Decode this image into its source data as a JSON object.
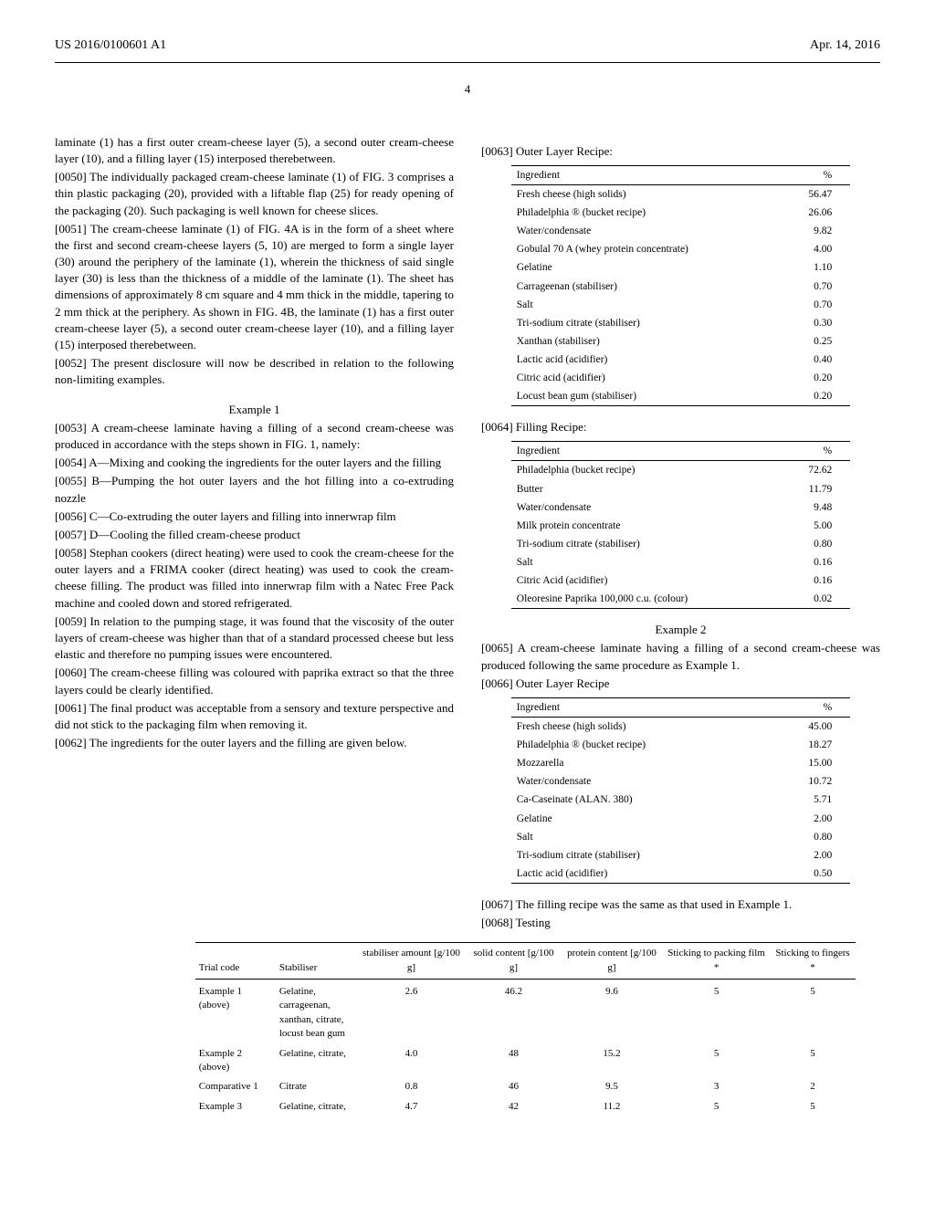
{
  "header": {
    "left": "US 2016/0100601 A1",
    "right": "Apr. 14, 2016",
    "page": "4"
  },
  "left_col": {
    "p49_cont": "laminate (1) has a first outer cream-cheese layer (5), a second outer cream-cheese layer (10), and a filling layer (15) interposed therebetween.",
    "p50": "[0050]    The individually packaged cream-cheese laminate (1) of FIG. 3 comprises a thin plastic packaging (20), provided with a liftable flap (25) for ready opening of the packaging (20). Such packaging is well known for cheese slices.",
    "p51": "[0051]    The cream-cheese laminate (1) of FIG. 4A is in the form of a sheet where the first and second cream-cheese layers (5, 10) are merged to form a single layer (30) around the periphery of the laminate (1), wherein the thickness of said single layer (30) is less than the thickness of a middle of the laminate (1). The sheet has dimensions of approximately 8 cm square and 4 mm thick in the middle, tapering to 2 mm thick at the periphery. As shown in FIG. 4B, the laminate (1) has a first outer cream-cheese layer (5), a second outer cream-cheese layer (10), and a filling layer (15) interposed therebetween.",
    "p52": "[0052]    The present disclosure will now be described in relation to the following non-limiting examples.",
    "example1": "Example 1",
    "p53": "[0053]    A cream-cheese laminate having a filling of a second cream-cheese was produced in accordance with the steps shown in FIG. 1, namely:",
    "p54": "[0054]    A—Mixing and cooking the ingredients for the outer layers and the filling",
    "p55": "[0055]    B—Pumping the hot outer layers and the hot filling into a co-extruding nozzle",
    "p56": "[0056]    C—Co-extruding the outer layers and filling into innerwrap film",
    "p57": "[0057]    D—Cooling the filled cream-cheese product",
    "p58": "[0058]    Stephan cookers (direct heating) were used to cook the cream-cheese for the outer layers and a FRIMA cooker (direct heating) was used to cook the cream-cheese filling. The product was filled into innerwrap film with a Natec Free Pack machine and cooled down and stored refrigerated.",
    "p59": "[0059]    In relation to the pumping stage, it was found that the viscosity of the outer layers of cream-cheese was higher than that of a standard processed cheese but less elastic and therefore no pumping issues were encountered.",
    "p60": "[0060]    The cream-cheese filling was coloured with paprika extract so that the three layers could be clearly identified.",
    "p61": "[0061]    The final product was acceptable from a sensory and texture perspective and did not stick to the packaging film when removing it.",
    "p62": "[0062]    The ingredients for the outer layers and the filling are given below."
  },
  "right_col": {
    "p63": "[0063]    Outer Layer Recipe:",
    "table1": {
      "header": [
        "Ingredient",
        "%"
      ],
      "rows": [
        [
          "Fresh cheese (high solids)",
          "56.47"
        ],
        [
          "Philadelphia ® (bucket recipe)",
          "26.06"
        ],
        [
          "Water/condensate",
          "9.82"
        ],
        [
          "Gobulal 70 A (whey protein concentrate)",
          "4.00"
        ],
        [
          "Gelatine",
          "1.10"
        ],
        [
          "Carrageenan (stabiliser)",
          "0.70"
        ],
        [
          "Salt",
          "0.70"
        ],
        [
          "Tri-sodium citrate (stabiliser)",
          "0.30"
        ],
        [
          "Xanthan (stabiliser)",
          "0.25"
        ],
        [
          "Lactic acid (acidifier)",
          "0.40"
        ],
        [
          "Citric acid (acidifier)",
          "0.20"
        ],
        [
          "Locust bean gum (stabiliser)",
          "0.20"
        ]
      ]
    },
    "p64": "[0064]    Filling Recipe:",
    "table2": {
      "header": [
        "Ingredient",
        "%"
      ],
      "rows": [
        [
          "Philadelphia (bucket recipe)",
          "72.62"
        ],
        [
          "Butter",
          "11.79"
        ],
        [
          "Water/condensate",
          "9.48"
        ],
        [
          "Milk protein concentrate",
          "5.00"
        ],
        [
          "Tri-sodium citrate (stabiliser)",
          "0.80"
        ],
        [
          "Salt",
          "0.16"
        ],
        [
          "Citric Acid (acidifier)",
          "0.16"
        ],
        [
          "Oleoresine Paprika 100,000 c.u. (colour)",
          "0.02"
        ]
      ]
    },
    "example2": "Example 2",
    "p65": "[0065]    A cream-cheese laminate having a filling of a second cream-cheese was produced following the same procedure as Example 1.",
    "p66": "[0066]    Outer Layer Recipe",
    "table3": {
      "header": [
        "Ingredient",
        "%"
      ],
      "rows": [
        [
          "Fresh cheese (high solids)",
          "45.00"
        ],
        [
          "Philadelphia ® (bucket recipe)",
          "18.27"
        ],
        [
          "Mozzarella",
          "15.00"
        ],
        [
          "Water/condensate",
          "10.72"
        ],
        [
          "Ca-Caseinate (ALAN. 380)",
          "5.71"
        ],
        [
          "Gelatine",
          "2.00"
        ],
        [
          "Salt",
          "0.80"
        ],
        [
          "Tri-sodium citrate (stabiliser)",
          "2.00"
        ],
        [
          "Lactic acid (acidifier)",
          "0.50"
        ]
      ]
    },
    "p67": "[0067]    The filling recipe was the same as that used in Example 1.",
    "p68": "[0068]    Testing"
  },
  "testing_table": {
    "header": [
      "Trial code",
      "Stabiliser",
      "stabiliser amount [g/100 g]",
      "solid content [g/100 g]",
      "protein content [g/100 g]",
      "Sticking to packing film *",
      "Sticking to fingers *"
    ],
    "rows": [
      [
        "Example 1 (above)",
        "Gelatine, carrageenan, xanthan, citrate, locust bean gum",
        "2.6",
        "46.2",
        "9.6",
        "5",
        "5"
      ],
      [
        "Example 2 (above)",
        "Gelatine, citrate,",
        "4.0",
        "48",
        "15.2",
        "5",
        "5"
      ],
      [
        "Comparative 1",
        "Citrate",
        "0.8",
        "46",
        "9.5",
        "3",
        "2"
      ],
      [
        "Example 3",
        "Gelatine, citrate,",
        "4.7",
        "42",
        "11.2",
        "5",
        "5"
      ]
    ]
  }
}
